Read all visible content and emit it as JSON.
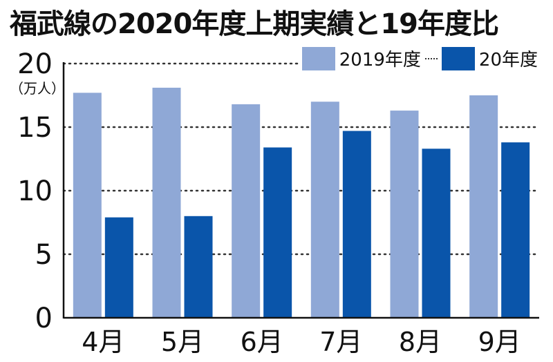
{
  "chart_data": {
    "type": "bar",
    "title": "福武線の2020年度上期実績と19年度比",
    "unit_label": "（万人）",
    "categories": [
      "4月",
      "5月",
      "6月",
      "7月",
      "8月",
      "9月"
    ],
    "series": [
      {
        "name": "2019年度",
        "color": "#8fa8d6",
        "values": [
          17.7,
          18.1,
          16.8,
          17.0,
          16.3,
          17.5
        ]
      },
      {
        "name": "20年度",
        "color": "#0a55aa",
        "values": [
          7.9,
          8.0,
          13.4,
          14.7,
          13.3,
          13.8
        ]
      }
    ],
    "yticks": [
      0,
      5,
      10,
      15,
      20
    ],
    "ylim": [
      0,
      20
    ],
    "grid": true,
    "legend_position": "top-right"
  }
}
